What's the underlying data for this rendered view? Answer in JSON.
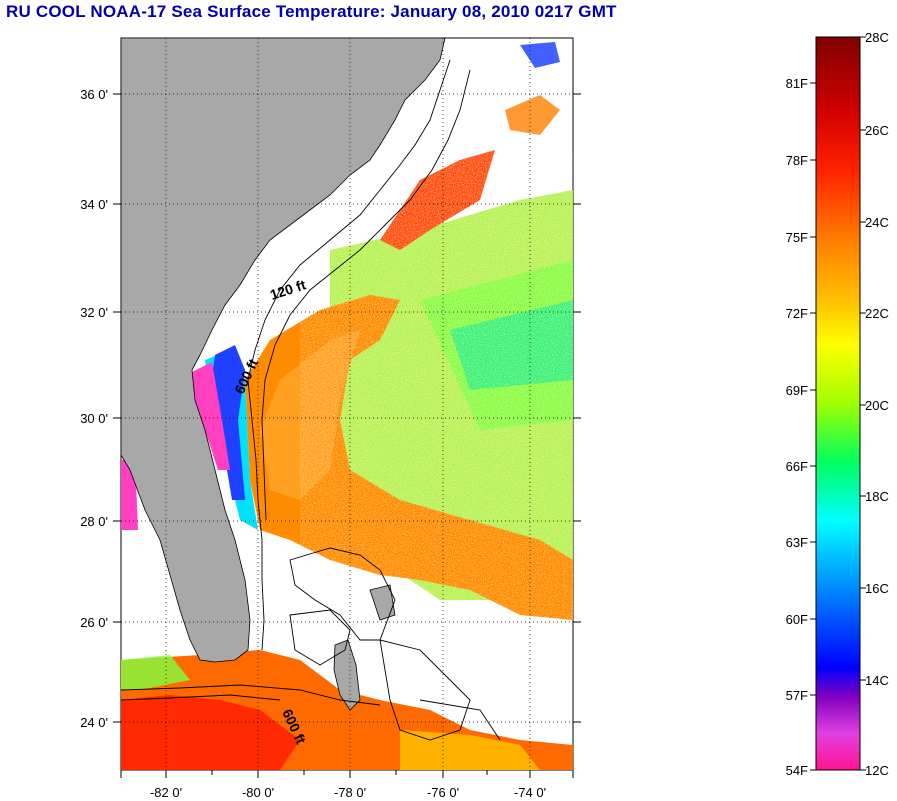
{
  "title": "RU COOL  NOAA-17  Sea Surface Temperature:  January 08, 2010 0217 GMT",
  "map": {
    "lon_ticks": [
      "-82 0'",
      "-80 0'",
      "-78 0'",
      "-76 0'",
      "-74 0'"
    ],
    "lat_ticks": [
      "36 0'",
      "34 0'",
      "32 0'",
      "30 0'",
      "28 0'",
      "26 0'",
      "24 0'"
    ],
    "contour_labels": [
      "120 ft",
      "600 ft",
      "600 ft"
    ],
    "colors": {
      "land": "#a8a8a8",
      "water_cloud": "#ffffff"
    }
  },
  "colorbar": {
    "fahrenheit_labels": [
      "81F",
      "78F",
      "75F",
      "72F",
      "69F",
      "66F",
      "63F",
      "60F",
      "57F",
      "54F"
    ],
    "celsius_labels": [
      "28C",
      "26C",
      "24C",
      "22C",
      "20C",
      "18C",
      "16C",
      "14C",
      "12C"
    ],
    "gradient_colors": [
      "#800000",
      "#ff0000",
      "#ff8000",
      "#ffc000",
      "#ffff00",
      "#80ff00",
      "#00ff80",
      "#00ffff",
      "#0080ff",
      "#0000ff",
      "#8000c0",
      "#ff40ff",
      "#ff1493"
    ]
  }
}
